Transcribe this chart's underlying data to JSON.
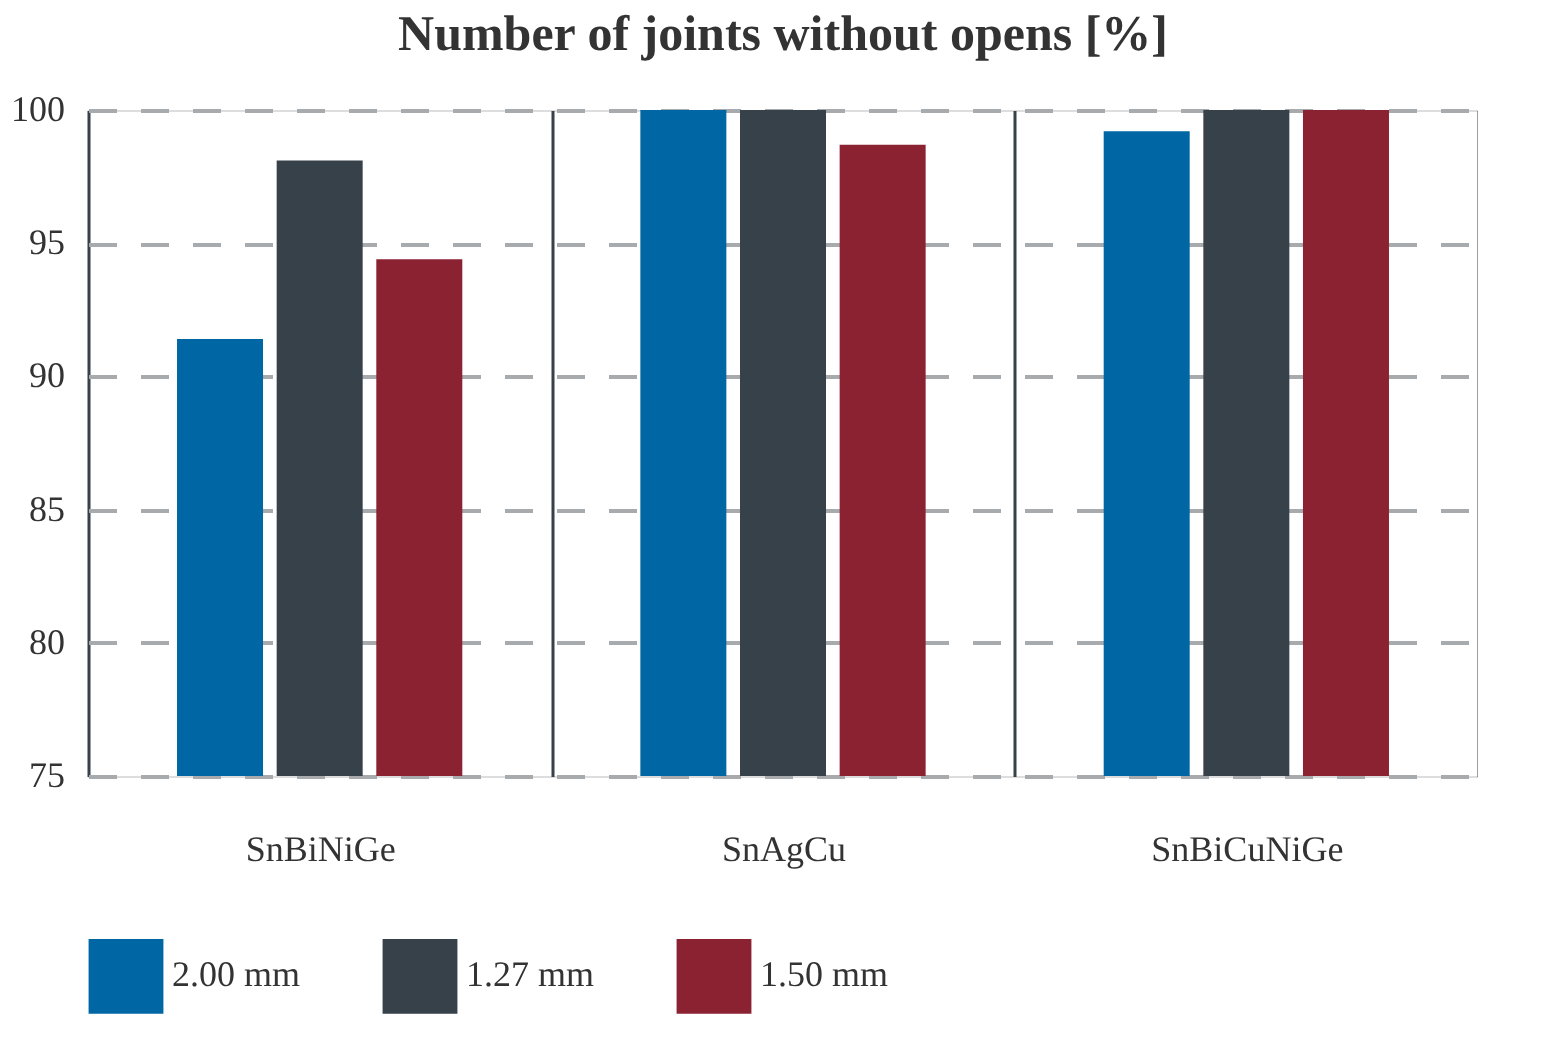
{
  "chart_data": {
    "type": "bar",
    "title": "Number of joints without opens [%]",
    "categories": [
      "SnBiNiGe",
      "SnAgCu",
      "SnBiCuNiGe"
    ],
    "series": [
      {
        "name": "2.00 mm",
        "color": "#0066a4",
        "values": [
          91.4,
          100,
          99.2
        ]
      },
      {
        "name": "1.27 mm",
        "color": "#36414a",
        "values": [
          98.1,
          100,
          100
        ]
      },
      {
        "name": "1.50 mm",
        "color": "#8b2232",
        "values": [
          94.4,
          98.7,
          100
        ]
      }
    ],
    "ylim": [
      75,
      100
    ],
    "yticks": [
      75,
      80,
      85,
      90,
      95,
      100
    ],
    "grid": true,
    "legend": "bottom"
  }
}
